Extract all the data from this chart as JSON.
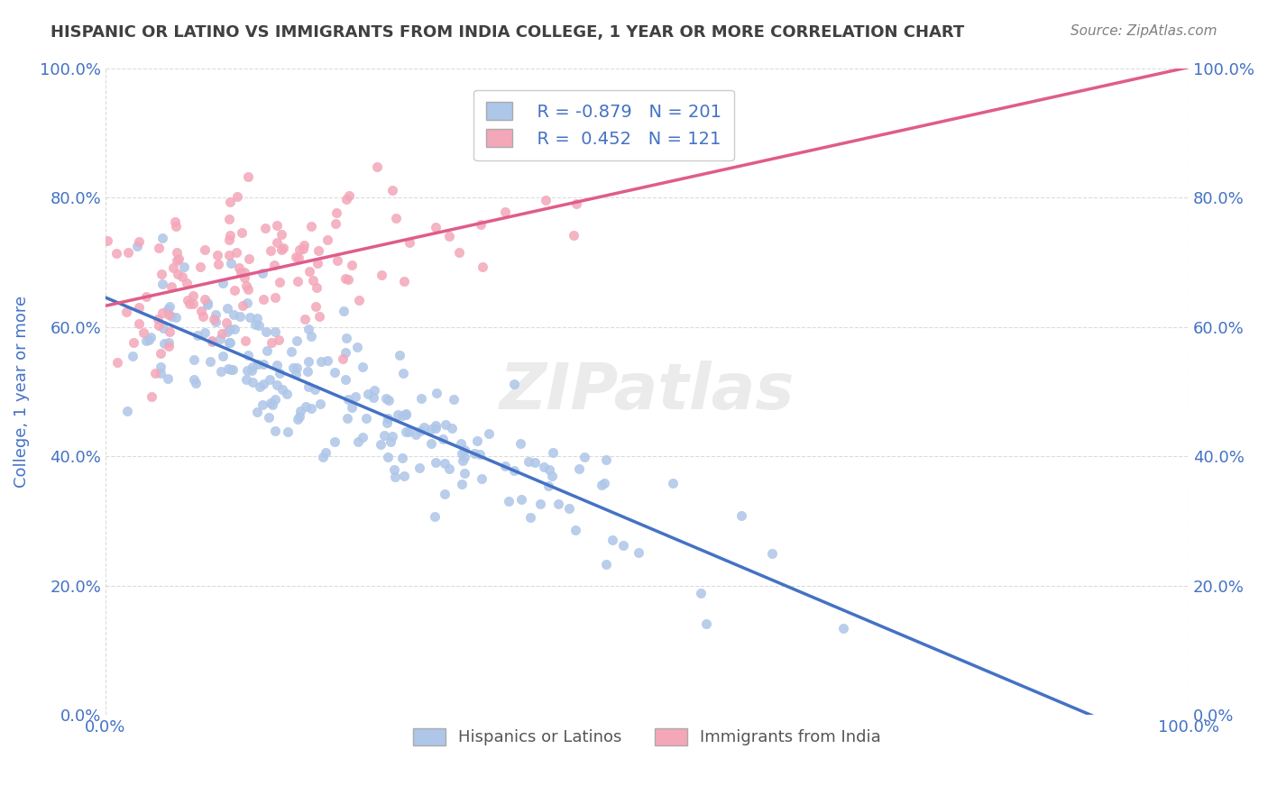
{
  "title": "HISPANIC OR LATINO VS IMMIGRANTS FROM INDIA COLLEGE, 1 YEAR OR MORE CORRELATION CHART",
  "source_text": "Source: ZipAtlas.com",
  "xlabel": "",
  "ylabel": "College, 1 year or more",
  "xlim": [
    0.0,
    1.0
  ],
  "ylim": [
    0.0,
    1.0
  ],
  "xtick_labels": [
    "0.0%",
    "100.0%"
  ],
  "ytick_labels": [
    "0.0%",
    "20.0%",
    "40.0%",
    "60.0%",
    "80.0%",
    "100.0%"
  ],
  "ytick_positions": [
    0.0,
    0.2,
    0.4,
    0.6,
    0.8,
    1.0
  ],
  "blue_R": -0.879,
  "blue_N": 201,
  "pink_R": 0.452,
  "pink_N": 121,
  "blue_color": "#aec6e8",
  "pink_color": "#f4a7b9",
  "blue_line_color": "#4472C4",
  "pink_line_color": "#E05C8A",
  "legend_label_blue": "Hispanics or Latinos",
  "legend_label_pink": "Immigrants from India",
  "watermark": "ZIPatlas",
  "background_color": "#ffffff",
  "grid_color": "#cccccc",
  "title_color": "#404040",
  "axis_label_color": "#4472C4",
  "legend_text_color": "#4472C4"
}
